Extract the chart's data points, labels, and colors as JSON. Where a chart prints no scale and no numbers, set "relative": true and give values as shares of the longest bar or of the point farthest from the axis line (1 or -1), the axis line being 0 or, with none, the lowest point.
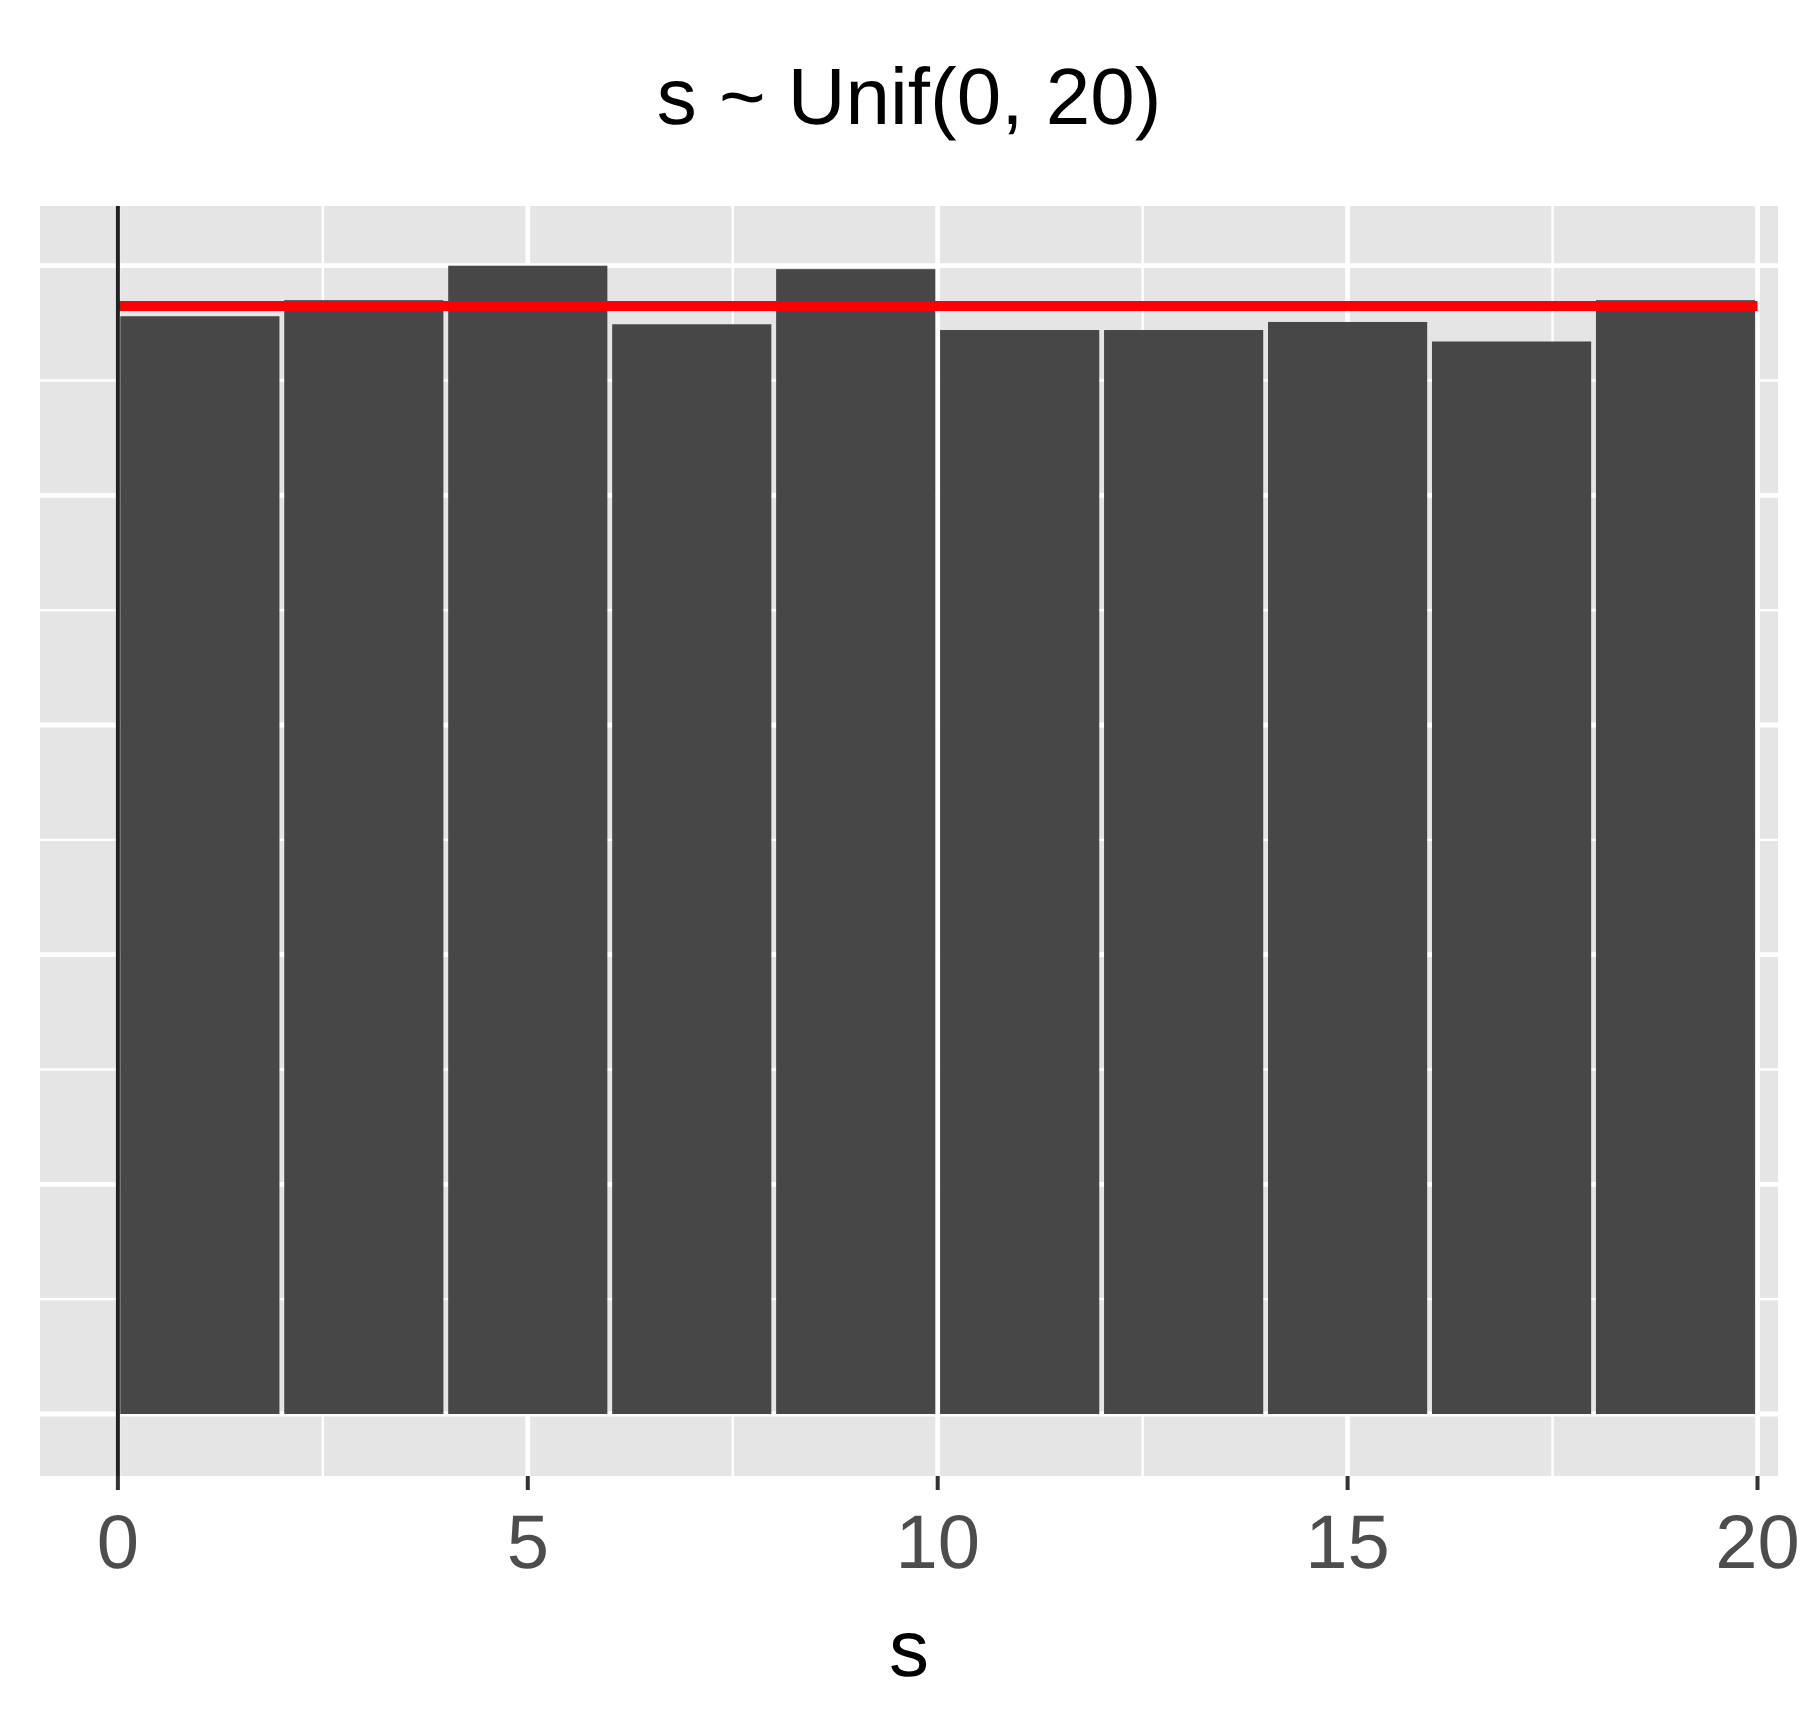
{
  "chart_data": {
    "type": "bar",
    "title": "s ~ Unif(0, 20)",
    "xlabel": "s",
    "relative": true,
    "x": [
      1,
      3,
      5,
      7,
      9,
      11,
      13,
      15,
      17,
      19
    ],
    "values": [
      0.956,
      0.97,
      1,
      0.949,
      0.997,
      0.944,
      0.944,
      0.951,
      0.934,
      0.97
    ],
    "color": "#474747",
    "xlim": [
      -0.95,
      20.25
    ],
    "xticks": [
      0,
      5,
      10,
      15,
      20
    ],
    "grid": true,
    "ref_lines": [
      {
        "axis": "y",
        "value": 0.965,
        "color": "#ff0000"
      },
      {
        "axis": "x",
        "value": 0,
        "color": "#222222"
      }
    ]
  }
}
